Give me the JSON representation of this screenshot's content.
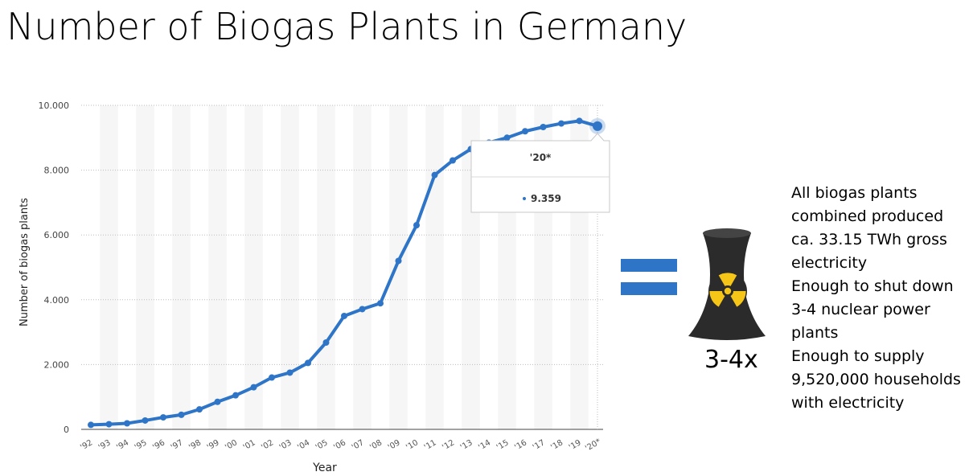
{
  "slide": {
    "title": "Number of Biogas Plants in Germany",
    "equals_symbol": "=",
    "nuclear_icon": "nuclear-cooling-tower-icon",
    "multiplier": "3-4x",
    "facts": [
      "All biogas plants combined produced ca. 33.15 TWh gross electricity",
      "Enough to shut down 3-4 nuclear power plants",
      "Enough to supply 9,520,000 households with electricity"
    ],
    "accent_color": "#2e75c8"
  },
  "chart_data": {
    "type": "line",
    "title": "",
    "xlabel": "Year",
    "ylabel": "Number of biogas plants",
    "ylim": [
      0,
      10000
    ],
    "y_ticks": [
      "0",
      "2.000",
      "4.000",
      "6.000",
      "8.000",
      "10.000"
    ],
    "grid": true,
    "categories": [
      "'92",
      "'93",
      "'94",
      "'95",
      "'96",
      "'97",
      "'98",
      "'99",
      "'00",
      "'01",
      "'02",
      "'03",
      "'04",
      "'05",
      "'06",
      "'07",
      "'08",
      "'09",
      "'10",
      "'11",
      "'12",
      "'13",
      "'14",
      "'15",
      "'16",
      "'17",
      "'18",
      "'19",
      "'20*"
    ],
    "series": [
      {
        "color": "#2e75c8",
        "values": [
          139,
          159,
          186,
          274,
          370,
          450,
          617,
          850,
          1050,
          1300,
          1600,
          1750,
          2050,
          2680,
          3500,
          3711,
          3891,
          5200,
          6300,
          7850,
          8300,
          8650,
          8850,
          9000,
          9200,
          9330,
          9440,
          9520,
          9359
        ]
      }
    ],
    "tooltip": {
      "label": "'20*",
      "value": "9.359"
    }
  }
}
